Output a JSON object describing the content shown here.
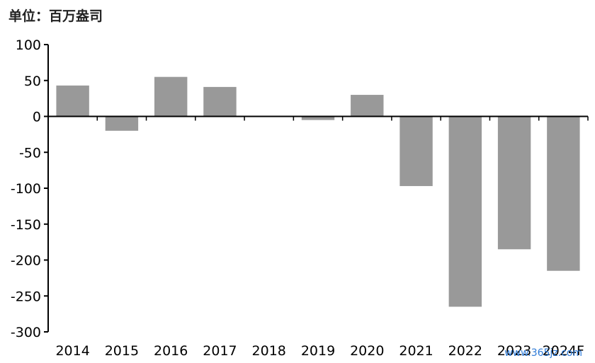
{
  "unit_label": "单位：百万盎司",
  "watermark": "www.365jz.com",
  "chart_data": {
    "type": "bar",
    "categories": [
      "2014",
      "2015",
      "2016",
      "2017",
      "2018",
      "2019",
      "2020",
      "2021",
      "2022",
      "2023",
      "2024F"
    ],
    "values": [
      43,
      -20,
      55,
      41,
      0,
      -5,
      30,
      -97,
      -265,
      -185,
      -215
    ],
    "yticks": [
      100,
      50,
      0,
      -50,
      -100,
      -150,
      -200,
      -250,
      -300
    ],
    "ylim": [
      -300,
      100
    ],
    "bar_color": "#999999",
    "grid": false,
    "title": "",
    "xlabel": "",
    "ylabel": ""
  }
}
